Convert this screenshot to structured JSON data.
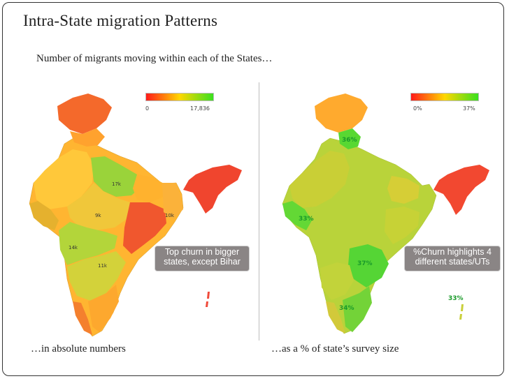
{
  "slide": {
    "title": "Intra-State migration Patterns",
    "subtitle": "Number of migrants moving within each of the States…"
  },
  "left_map": {
    "legend": {
      "min_label": "0",
      "max_label": "17,836",
      "colors": [
        "#ff1a1a",
        "#ffd700",
        "#39e01f"
      ]
    },
    "labels": {
      "up": "17k",
      "mp": "9k",
      "wb": "10k",
      "mh": "14k",
      "ka": "11k"
    },
    "callout": "Top churn in bigger states, except Bihar",
    "caption": "…in absolute numbers"
  },
  "right_map": {
    "legend": {
      "min_label": "0%",
      "max_label": "37%",
      "colors": [
        "#ff1a1a",
        "#ffd700",
        "#39e01f"
      ]
    },
    "labels": {
      "uk": "36%",
      "gj": "33%",
      "ap": "37%",
      "tn": "34%",
      "an": "33%"
    },
    "callout": "%Churn highlights 4 different states/UTs",
    "caption": "…as a % of state’s survey size"
  }
}
